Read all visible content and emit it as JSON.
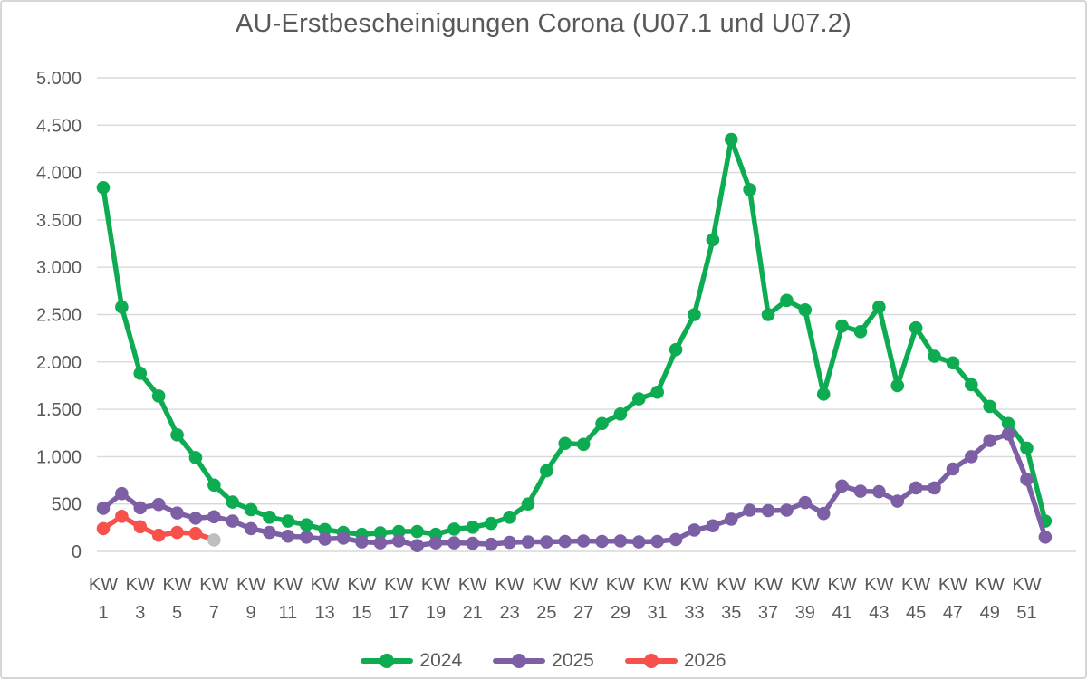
{
  "title": "AU-Erstbescheinigungen Corona (U07.1 und U07.2)",
  "colors": {
    "2024": "#0eac52",
    "2025": "#7d5fa5",
    "2026": "#f8504b",
    "provisional_marker": "#bfbfbf",
    "grid": "#d9d9d9",
    "axis_text": "#595959",
    "title_text": "#595959"
  },
  "chart_data": {
    "type": "line",
    "title": "AU-Erstbescheinigungen Corona (U07.1 und U07.2)",
    "xlabel": "",
    "ylabel": "",
    "x_unit": "KW",
    "x": [
      1,
      2,
      3,
      4,
      5,
      6,
      7,
      8,
      9,
      10,
      11,
      12,
      13,
      14,
      15,
      16,
      17,
      18,
      19,
      20,
      21,
      22,
      23,
      24,
      25,
      26,
      27,
      28,
      29,
      30,
      31,
      32,
      33,
      34,
      35,
      36,
      37,
      38,
      39,
      40,
      41,
      42,
      43,
      44,
      45,
      46,
      47,
      48,
      49,
      50,
      51,
      52
    ],
    "x_ticks_shown": [
      1,
      3,
      5,
      7,
      9,
      11,
      13,
      15,
      17,
      19,
      21,
      23,
      25,
      27,
      29,
      31,
      33,
      35,
      37,
      39,
      41,
      43,
      45,
      47,
      49,
      51
    ],
    "x_tick_prefix": "KW",
    "ylim": [
      0,
      5000
    ],
    "y_tick_values": [
      0,
      500,
      1000,
      1500,
      2000,
      2500,
      3000,
      3500,
      4000,
      4500,
      5000
    ],
    "y_tick_labels": [
      "0",
      "500",
      "1.000",
      "1.500",
      "2.000",
      "2.500",
      "3.000",
      "3.500",
      "4.000",
      "4.500",
      "5.000"
    ],
    "grid": "horizontal",
    "legend_position": "bottom",
    "series": [
      {
        "name": "2024",
        "values": [
          3840,
          2580,
          1880,
          1640,
          1230,
          990,
          700,
          520,
          440,
          360,
          320,
          280,
          230,
          200,
          180,
          195,
          210,
          210,
          180,
          235,
          255,
          295,
          360,
          500,
          850,
          1140,
          1130,
          1350,
          1450,
          1610,
          1680,
          2130,
          2500,
          3290,
          4350,
          3820,
          2500,
          2650,
          2550,
          1660,
          2380,
          2320,
          2580,
          1750,
          2360,
          2060,
          1990,
          1760,
          1530,
          1350,
          1090,
          320
        ],
        "provisional_last": false
      },
      {
        "name": "2025",
        "values": [
          455,
          610,
          460,
          495,
          405,
          350,
          365,
          320,
          240,
          200,
          160,
          150,
          130,
          140,
          100,
          90,
          110,
          60,
          90,
          90,
          85,
          75,
          95,
          100,
          100,
          105,
          110,
          105,
          110,
          100,
          105,
          125,
          225,
          270,
          340,
          435,
          430,
          435,
          515,
          400,
          690,
          635,
          630,
          530,
          670,
          670,
          870,
          1000,
          1170,
          1240,
          760,
          150
        ],
        "provisional_last": false
      },
      {
        "name": "2026",
        "values": [
          240,
          370,
          260,
          170,
          200,
          190,
          120
        ],
        "provisional_last": true
      }
    ]
  },
  "legend": {
    "items": [
      "2024",
      "2025",
      "2026"
    ]
  }
}
